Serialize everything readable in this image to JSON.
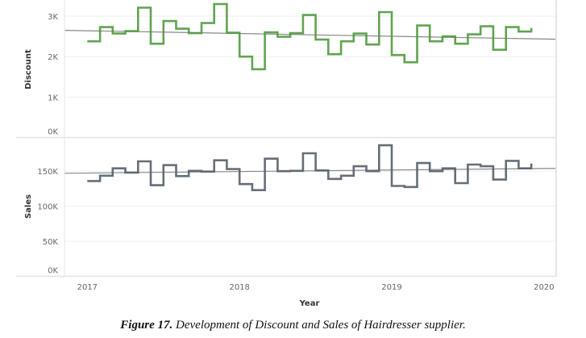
{
  "chart_data": [
    {
      "type": "line",
      "step": true,
      "name": "discount-panel",
      "ylabel": "Discount",
      "ylim": [
        0,
        3400
      ],
      "yticks": [
        0,
        1000,
        2000,
        3000
      ],
      "ytick_labels": [
        "0K",
        "1K",
        "2K",
        "3K"
      ],
      "color": "#4f9a3d",
      "x_start": 2017.0,
      "x_step_years": 0.08333,
      "values": [
        2380,
        2730,
        2570,
        2630,
        3210,
        2320,
        2880,
        2690,
        2580,
        2830,
        3300,
        2590,
        2000,
        1690,
        2600,
        2490,
        2580,
        3030,
        2420,
        2060,
        2380,
        2570,
        2300,
        3100,
        2040,
        1860,
        2770,
        2380,
        2500,
        2320,
        2550,
        2750,
        2170,
        2730,
        2620,
        2710
      ],
      "trend": {
        "x": [
          2016.85,
          2020.08
        ],
        "y": [
          2650,
          2430
        ],
        "color": "#888888"
      }
    },
    {
      "type": "line",
      "step": true,
      "name": "sales-panel",
      "ylabel": "Sales",
      "ylim": [
        0,
        198000
      ],
      "yticks": [
        0,
        50000,
        100000,
        150000
      ],
      "ytick_labels": [
        "0K",
        "50K",
        "100K",
        "150K"
      ],
      "color": "#555f69",
      "x_start": 2017.0,
      "x_step_years": 0.08333,
      "values": [
        136000,
        143500,
        154000,
        148000,
        164000,
        130000,
        158600,
        143000,
        150500,
        149400,
        165500,
        153000,
        131600,
        123000,
        167800,
        150000,
        150500,
        175500,
        151000,
        139000,
        143600,
        157000,
        150000,
        187000,
        128900,
        127400,
        161600,
        150000,
        154000,
        133000,
        159400,
        157000,
        138000,
        164700,
        154000,
        160800
      ],
      "trend": {
        "x": [
          2016.85,
          2020.08
        ],
        "y": [
          147000,
          154000
        ],
        "color": "#888888"
      }
    }
  ],
  "x_axis": {
    "title": "Year",
    "range": [
      2016.85,
      2020.08
    ],
    "ticks": [
      2017,
      2018,
      2019,
      2020
    ],
    "tick_labels": [
      "2017",
      "2018",
      "2019",
      "2020"
    ]
  },
  "caption": {
    "figure_label": "Figure 17.",
    "text": "Development of Discount and Sales of Hairdresser supplier."
  }
}
